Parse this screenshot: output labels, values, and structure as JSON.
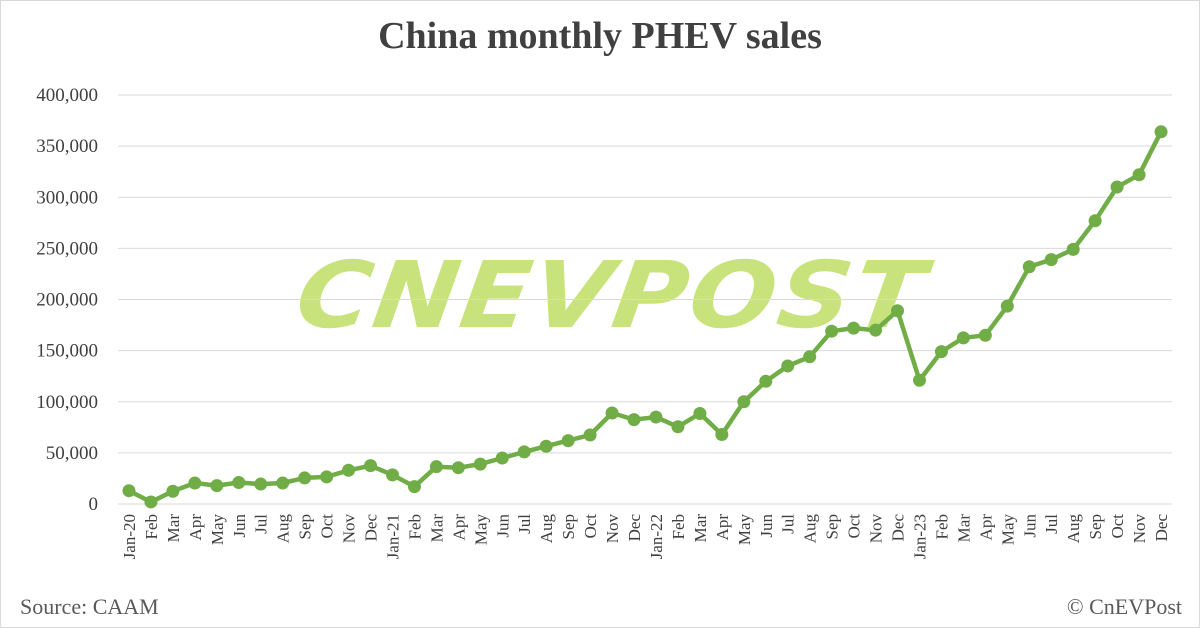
{
  "title": "China monthly PHEV sales",
  "source": "Source: CAAM",
  "credit": "© CnEVPost",
  "watermark": "CNEVPOST",
  "colors": {
    "line": "#70ad47",
    "watermark": "#b5d94f",
    "grid": "#d9d9d9",
    "text": "#404040"
  },
  "chart_data": {
    "type": "line",
    "title": "China monthly PHEV sales",
    "xlabel": "",
    "ylabel": "",
    "ylim": [
      0,
      400000
    ],
    "yticks": [
      0,
      50000,
      100000,
      150000,
      200000,
      250000,
      300000,
      350000,
      400000
    ],
    "ytick_labels": [
      "0",
      "50,000",
      "100,000",
      "150,000",
      "200,000",
      "250,000",
      "300,000",
      "350,000",
      "400,000"
    ],
    "grid": true,
    "legend": "none",
    "categories": [
      "Jan-20",
      "Feb",
      "Mar",
      "Apr",
      "May",
      "Jun",
      "Jul",
      "Aug",
      "Sep",
      "Oct",
      "Nov",
      "Dec",
      "Jan-21",
      "Feb",
      "Mar",
      "Apr",
      "May",
      "Jun",
      "Jul",
      "Aug",
      "Sep",
      "Oct",
      "Nov",
      "Dec",
      "Jan-22",
      "Feb",
      "Mar",
      "Apr",
      "May",
      "Jun",
      "Jul",
      "Aug",
      "Sep",
      "Oct",
      "Nov",
      "Dec",
      "Jan-23",
      "Feb",
      "Mar",
      "Apr",
      "May",
      "Jun",
      "Jul",
      "Aug",
      "Sep",
      "Oct",
      "Nov",
      "Dec"
    ],
    "series": [
      {
        "values": [
          13000,
          2000,
          12500,
          20500,
          18000,
          21000,
          19500,
          20500,
          25500,
          26500,
          33000,
          37500,
          28500,
          17000,
          36500,
          35500,
          39000,
          45000,
          51000,
          56500,
          62000,
          67500,
          89000,
          82500,
          85000,
          75500,
          88500,
          68000,
          100000,
          120000,
          135000,
          144000,
          169000,
          172000,
          170000,
          189000,
          121000,
          149000,
          162500,
          165000,
          193500,
          232000,
          239000,
          249000,
          277000,
          310000,
          322000,
          364000
        ]
      }
    ]
  }
}
